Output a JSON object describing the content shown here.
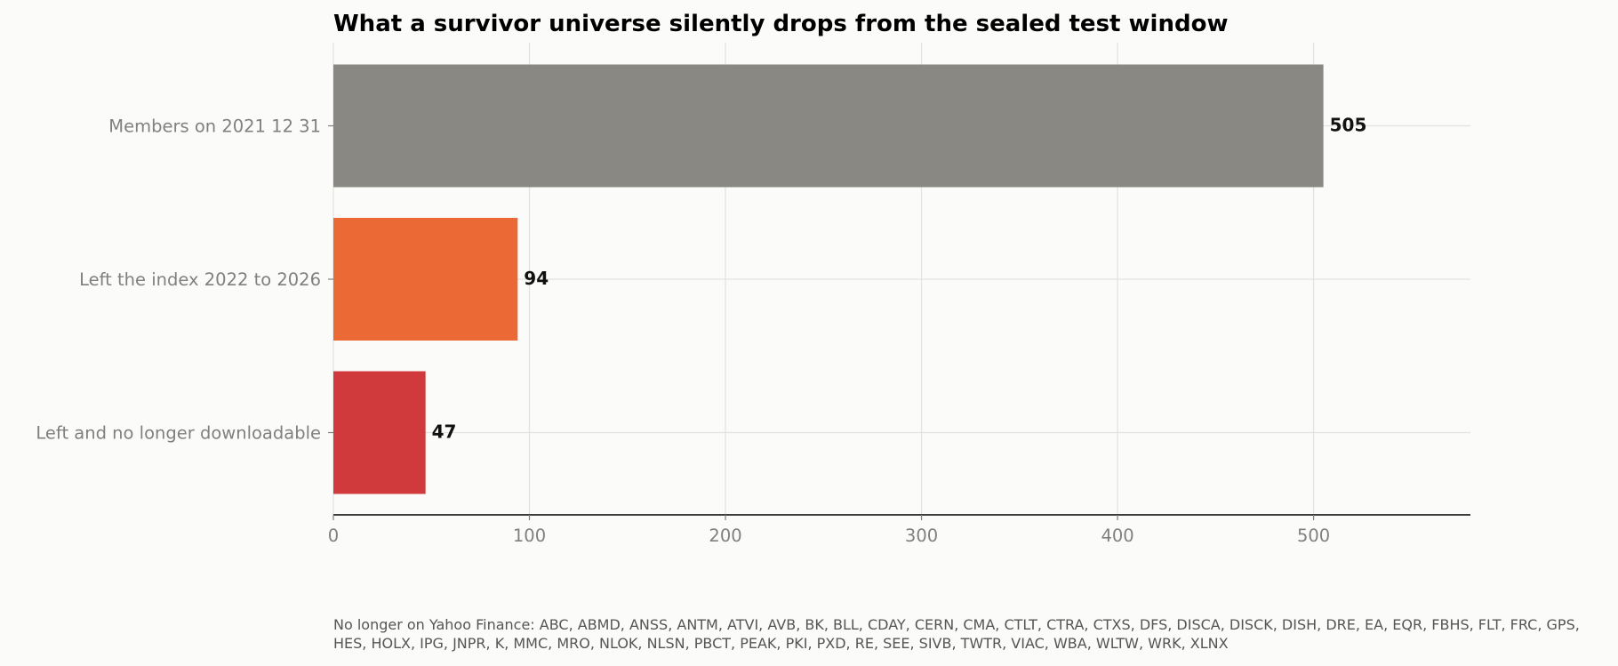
{
  "chart_data": {
    "type": "bar",
    "orientation": "horizontal",
    "title": "What a survivor universe silently drops from the sealed test window",
    "xlabel": "",
    "ylabel": "",
    "categories": [
      "Members on 2021 12 31",
      "Left the index 2022 to 2026",
      "Left and no longer downloadable"
    ],
    "values": [
      505,
      94,
      47
    ],
    "value_labels": [
      "505",
      "94",
      "47"
    ],
    "colors": [
      "#898883",
      "#ea6934",
      "#d03a3c"
    ],
    "xlim": [
      0,
      580
    ],
    "xticks": [
      0,
      100,
      200,
      300,
      400,
      500
    ],
    "xtick_labels": [
      "0",
      "100",
      "200",
      "300",
      "400",
      "500"
    ],
    "grid": true,
    "legend": "none"
  },
  "footnote": "No longer on Yahoo Finance: ABC, ABMD, ANSS, ANTM, ATVI, AVB, BK, BLL, CDAY, CERN, CMA, CTLT, CTRA, CTXS, DFS, DISCA, DISCK, DISH, DRE, EA, EQR, FBHS, FLT, FRC, GPS, HES, HOLX, IPG, JNPR, K, MMC, MRO, NLOK, NLSN, PBCT, PEAK, PKI, PXD, RE, SEE, SIVB, TWTR, VIAC, WBA, WLTW, WRK, XLNX"
}
